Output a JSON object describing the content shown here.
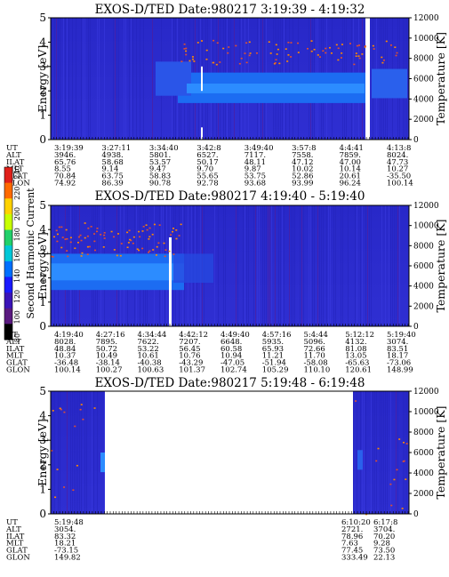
{
  "colorbar": {
    "label": "Second Harmonic Current",
    "ticks": [
      "240",
      "220",
      "200",
      "180",
      "160",
      "140",
      "120",
      "100",
      "80"
    ],
    "colors": [
      "#e0201a",
      "#ff6a00",
      "#ffd200",
      "#c8ff00",
      "#22d06a",
      "#00c8d8",
      "#0070ff",
      "#1a1aff",
      "#3a14b8",
      "#5a1a80",
      "#000000"
    ]
  },
  "chart_data": [
    {
      "type": "heatmap",
      "title": "EXOS-D/TED   Date:980217  3:19:39 - 4:19:32",
      "ylabel": "Energy [eV]",
      "ylabel_right": "Temperature [K]",
      "ylim": [
        0,
        5
      ],
      "ylim_right": [
        0,
        12000
      ],
      "yticks": [
        "0",
        "1",
        "2",
        "3",
        "4",
        "5"
      ],
      "yticks_right": [
        "0",
        "2000",
        "4000",
        "6000",
        "8000",
        "10000",
        "12000"
      ],
      "data_gaps": [
        "4:12:22 - 4:13:40"
      ],
      "row_labels": [
        "UT",
        "ALT",
        "ILAT",
        "MLT",
        "GLAT",
        "GLON"
      ],
      "columns": [
        [
          "3:19:39",
          "3946.",
          "65.76",
          "8.55",
          "70.84",
          "74.92"
        ],
        [
          "3:27:11",
          "4938.",
          "58.68",
          "9.14",
          "63.75",
          "86.39"
        ],
        [
          "3:34:40",
          "5801.",
          "53.57",
          "9.47",
          "58.83",
          "90.78"
        ],
        [
          "3:42:8",
          "6527.",
          "50.17",
          "9.70",
          "55.65",
          "92.78"
        ],
        [
          "3:49:40",
          "7117.",
          "48.11",
          "9.87",
          "53.75",
          "93.68"
        ],
        [
          "3:57:8",
          "7558.",
          "47.12",
          "10.02",
          "52.86",
          "93.99"
        ],
        [
          "4:4:41",
          "7859.",
          "47.00",
          "10.14",
          "20.61",
          "96.24"
        ],
        [
          "4:13:8",
          "8024.",
          "47.73",
          "10.27",
          "-35.50",
          "100.14"
        ]
      ]
    },
    {
      "type": "heatmap",
      "title": "EXOS-D/TED   Date:980217  4:19:40 - 5:19:40",
      "ylabel": "Energy [eV]",
      "ylabel_right": "Temperature [K]",
      "ylim": [
        0,
        5
      ],
      "ylim_right": [
        0,
        12000
      ],
      "yticks": [
        "0",
        "1",
        "2",
        "3",
        "4",
        "5"
      ],
      "yticks_right": [
        "0",
        "2000",
        "4000",
        "6000",
        "8000",
        "10000",
        "12000"
      ],
      "row_labels": [
        "UT",
        "ALT",
        "ILAT",
        "MLT",
        "GLAT",
        "GLON"
      ],
      "columns": [
        [
          "4:19:40",
          "8028.",
          "48.84",
          "10.37",
          "-36.48",
          "100.14"
        ],
        [
          "4:27:16",
          "7895.",
          "50.72",
          "10.49",
          "-38.14",
          "100.27"
        ],
        [
          "4:34:44",
          "7622.",
          "53.22",
          "10.61",
          "-40.38",
          "100.63"
        ],
        [
          "4:42:12",
          "7207.",
          "56.45",
          "10.76",
          "-43.29",
          "101.37"
        ],
        [
          "4:49:40",
          "6648.",
          "60.58",
          "10.94",
          "-47.05",
          "102.74"
        ],
        [
          "4:57:16",
          "5935.",
          "65.93",
          "11.21",
          "-51.94",
          "105.29"
        ],
        [
          "5:4:44",
          "5096.",
          "72.66",
          "11.70",
          "-58.08",
          "110.10"
        ],
        [
          "5:12:12",
          "4132.",
          "81.08",
          "13.05",
          "-65.63",
          "120.61"
        ],
        [
          "5:19:40",
          "3074.",
          "83.51",
          "18.17",
          "-73.06",
          "148.99"
        ]
      ]
    },
    {
      "type": "heatmap",
      "title": "EXOS-D/TED   Date:980217  5:19:48 - 6:19:48",
      "ylabel": "Energy [eV]",
      "ylabel_right": "Temperature [K]",
      "ylim": [
        0,
        5
      ],
      "ylim_right": [
        0,
        12000
      ],
      "yticks": [
        "0",
        "1",
        "2",
        "3",
        "4",
        "5"
      ],
      "yticks_right": [
        "0",
        "2000",
        "4000",
        "6000",
        "8000",
        "10000",
        "12000"
      ],
      "row_labels": [
        "UT",
        "ALT",
        "ILAT",
        "MLT",
        "GLAT",
        "GLON"
      ],
      "columns": [
        [
          "5:19:48",
          "3054.",
          "83.32",
          "18.21",
          "-73.15",
          "149.82"
        ],
        [
          "6:10:20",
          "2721.",
          "78.96",
          "7.63",
          "77.45",
          "333.49"
        ],
        [
          "6:17:8",
          "3704.",
          "70.20",
          "9.28",
          "73.50",
          "22.13"
        ]
      ]
    }
  ]
}
